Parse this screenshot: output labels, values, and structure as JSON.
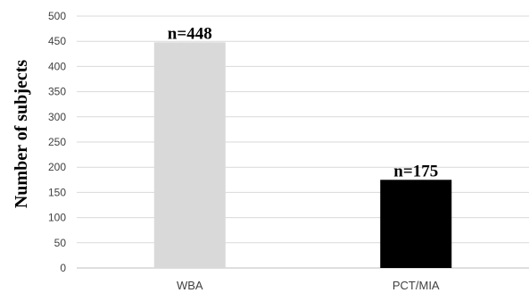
{
  "chart_data": {
    "type": "bar",
    "categories": [
      "WBA",
      "PCT/MIA"
    ],
    "values": [
      448,
      175
    ],
    "data_labels": [
      "n=448",
      "n=175"
    ],
    "bar_colors": [
      "#d9d9d9",
      "#000000"
    ],
    "ylabel": "Number of subjects",
    "xlabel": "",
    "title": "",
    "ylim": [
      0,
      500
    ],
    "yticks": [
      0,
      50,
      100,
      150,
      200,
      250,
      300,
      350,
      400,
      450,
      500
    ],
    "grid": true,
    "legend": "none"
  }
}
